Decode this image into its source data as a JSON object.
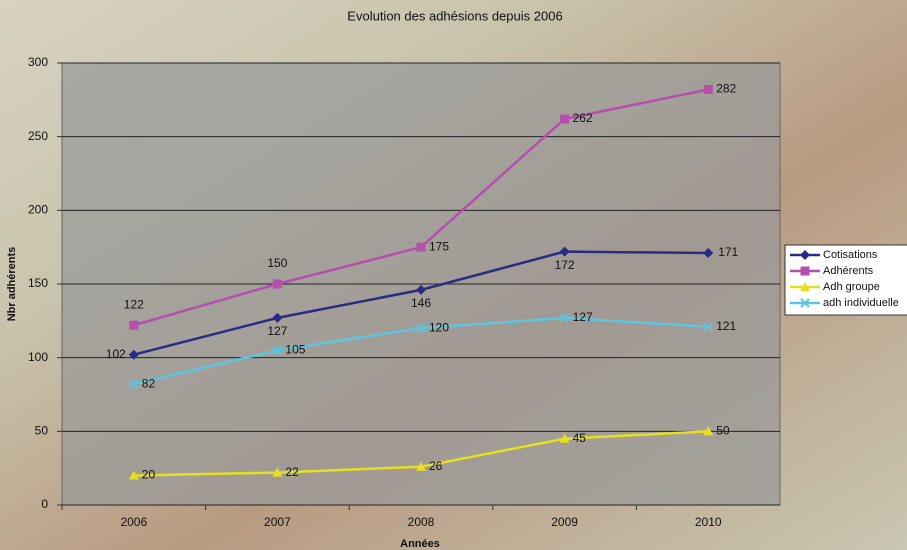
{
  "chart_data": {
    "type": "line",
    "title": "Evolution des adhésions depuis 2006",
    "x_label": "Années",
    "y_label": "Nbr adhérents",
    "categories": [
      "2006",
      "2007",
      "2008",
      "2009",
      "2010"
    ],
    "series": [
      {
        "name": "Cotisations",
        "color": "#2b2b85",
        "marker": "diamond",
        "values": [
          102,
          127,
          146,
          172,
          171
        ]
      },
      {
        "name": "Adhérents",
        "color": "#b54fae",
        "marker": "square",
        "values": [
          122,
          150,
          175,
          262,
          282
        ]
      },
      {
        "name": "Adh groupe",
        "color": "#e6e020",
        "marker": "triangle",
        "values": [
          20,
          22,
          26,
          45,
          50
        ]
      },
      {
        "name": "adh individuelle",
        "color": "#5cc6e0",
        "marker": "x",
        "values": [
          82,
          105,
          120,
          127,
          121
        ]
      }
    ],
    "ylim": [
      0,
      300
    ],
    "yticks": [
      0,
      50,
      100,
      150,
      200,
      250,
      300
    ],
    "grid": true
  }
}
